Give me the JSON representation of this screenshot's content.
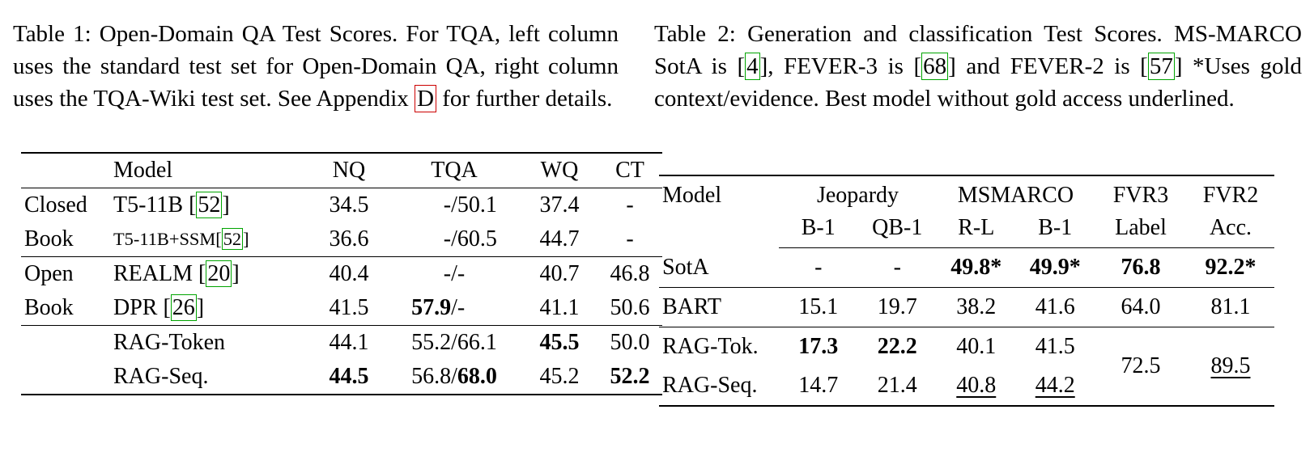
{
  "punct": {
    "lb": "[",
    "rb": "]",
    "slash": "/"
  },
  "t1": {
    "caption": {
      "pre": "Table 1: Open-Domain QA Test Scores. For TQA, left column uses the standard test set for Open-Domain QA, right column uses the TQA-Wiki test set. See Appendix ",
      "appendix_ref": "D",
      "post": " for further details."
    },
    "headers": {
      "group": "",
      "model": "Model",
      "nq": "NQ",
      "tqa": "TQA",
      "wq": "WQ",
      "ct": "CT"
    },
    "rows": [
      {
        "group": "Closed",
        "model": "T5-11B ",
        "cite": "52",
        "nq": "34.5",
        "tqa_l": "-",
        "tqa_r": "50.1",
        "wq": "37.4",
        "ct": "-"
      },
      {
        "group": "Book",
        "model": "T5-11B+SSM",
        "cite": "52",
        "nq": "36.6",
        "tqa_l": "-",
        "tqa_r": "60.5",
        "wq": "44.7",
        "ct": "-"
      },
      {
        "group": "Open",
        "model": "REALM ",
        "cite": "20",
        "nq": "40.4",
        "tqa_l": "-",
        "tqa_r": " -",
        "wq": "40.7",
        "ct": "46.8"
      },
      {
        "group": "Book",
        "model": "DPR ",
        "cite": "26",
        "nq": "41.5",
        "tqa_l": "57.9",
        "tqa_r": " -",
        "wq": "41.1",
        "ct": "50.6"
      },
      {
        "group": "",
        "model": "RAG-Token",
        "nq": "44.1",
        "tqa_l": "55.2",
        "tqa_r": "66.1",
        "wq": "45.5",
        "ct": "50.0"
      },
      {
        "group": "",
        "model": "RAG-Seq.",
        "nq": "44.5",
        "tqa_l": "56.8",
        "tqa_r": "68.0",
        "wq": "45.2",
        "ct": "52.2"
      }
    ]
  },
  "t2": {
    "caption": {
      "p1": "Table 2: Generation and classification Test Scores. MS-MARCO SotA is ",
      "cite1": "4",
      "p2": ", FEVER-3 is ",
      "cite2": "68",
      "p3": " and FEVER-2 is ",
      "cite3": "57",
      "p4": " *Uses gold context/evidence. Best model without gold access underlined."
    },
    "h1": {
      "model": "Model",
      "jeopardy": "Jeopardy",
      "msmarco": "MSMARCO",
      "fvr3": "FVR3",
      "fvr2": "FVR2"
    },
    "h2": {
      "b1a": "B-1",
      "qb1": "QB-1",
      "rl": "R-L",
      "b1b": "B-1",
      "label": "Label",
      "acc": "Acc."
    },
    "rows": {
      "sota": {
        "model": "SotA",
        "b1": "-",
        "qb1": "-",
        "rl": "49.8*",
        "b1m": "49.9*",
        "fvr3": "76.8",
        "fvr2": "92.2*"
      },
      "bart": {
        "model": "BART",
        "b1": "15.1",
        "qb1": "19.7",
        "rl": "38.2",
        "b1m": "41.6",
        "fvr3": "64.0",
        "fvr2": "81.1"
      },
      "ragtok": {
        "model": "RAG-Tok.",
        "b1": "17.3",
        "qb1": "22.2",
        "rl": "40.1",
        "b1m": "41.5",
        "fvr3": "72.5",
        "fvr2": "89.5"
      },
      "ragseq": {
        "model": "RAG-Seq.",
        "b1": "14.7",
        "qb1": "21.4",
        "rl": "40.8",
        "b1m": "44.2"
      }
    }
  }
}
